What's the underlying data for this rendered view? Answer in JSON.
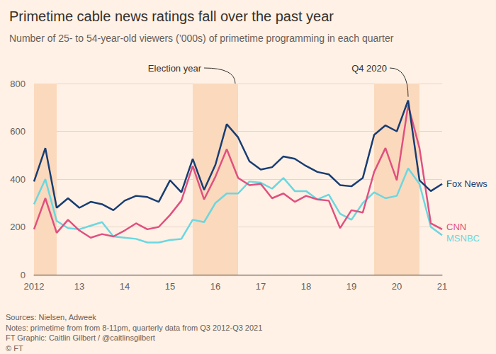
{
  "chart_data": {
    "type": "line",
    "title": "Primetime cable news ratings fall over the past year",
    "subtitle": "Number of 25- to 54-year-old viewers (’000s) of primetime programming in each quarter",
    "categories": [
      "2012",
      null,
      null,
      null,
      "13",
      null,
      null,
      null,
      "14",
      null,
      null,
      null,
      "15",
      null,
      null,
      null,
      "16",
      null,
      null,
      null,
      "17",
      null,
      null,
      null,
      "18",
      null,
      null,
      null,
      "19",
      null,
      null,
      null,
      "20",
      null,
      null,
      null,
      "21"
    ],
    "series": [
      {
        "name": "Fox News",
        "color": "#183d73",
        "values": [
          390,
          530,
          280,
          320,
          280,
          305,
          295,
          270,
          310,
          330,
          325,
          305,
          395,
          345,
          485,
          355,
          460,
          630,
          575,
          475,
          440,
          450,
          495,
          485,
          455,
          430,
          420,
          375,
          370,
          405,
          585,
          625,
          600,
          730,
          395,
          350,
          380
        ]
      },
      {
        "name": "CNN",
        "color": "#e0507f",
        "values": [
          190,
          320,
          175,
          230,
          185,
          155,
          170,
          160,
          185,
          215,
          190,
          200,
          250,
          310,
          455,
          315,
          410,
          525,
          405,
          375,
          380,
          320,
          340,
          305,
          330,
          315,
          310,
          195,
          270,
          260,
          430,
          530,
          395,
          710,
          530,
          215,
          190
        ]
      },
      {
        "name": "MSNBC",
        "color": "#6bd7e0",
        "values": [
          295,
          400,
          225,
          195,
          190,
          205,
          220,
          160,
          155,
          150,
          135,
          135,
          145,
          150,
          230,
          220,
          300,
          340,
          340,
          390,
          385,
          360,
          405,
          350,
          350,
          315,
          335,
          255,
          230,
          300,
          345,
          320,
          330,
          445,
          380,
          200,
          165
        ]
      }
    ],
    "ylim": [
      0,
      800
    ],
    "yticks": [
      0,
      200,
      400,
      600,
      800
    ],
    "grid": true,
    "shaded": {
      "label": "Election year",
      "ranges": [
        [
          0,
          2
        ],
        [
          14,
          18
        ],
        [
          30,
          34
        ]
      ]
    },
    "annotations": [
      {
        "text": "Q4 2020",
        "index": 33,
        "series": "Fox News"
      }
    ],
    "footer": [
      "Sources: Nielsen, Adweek",
      "Notes: primetime from from 8-11pm, quarterly data from Q3 2012-Q3 2021",
      "FT Graphic: Caitlin Gilbert / @caitlinsgilbert",
      "© FT"
    ]
  }
}
